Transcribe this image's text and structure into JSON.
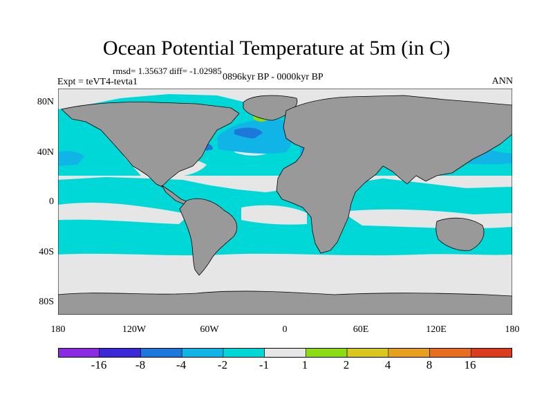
{
  "title": "Ocean Potential Temperature at 5m (in C)",
  "stats": "rmsd= 1.35637 diff= -1.02985",
  "experiment": "Expt = teVT4-tevta1",
  "period": "0896kyr BP - 0000kyr BP",
  "season": "ANN",
  "colors": {
    "land": "#999999",
    "ocean_default": "#00d8d8",
    "near_zero": "#e6e6e6",
    "sea_ice": "#dcdcdc"
  },
  "axes": {
    "lat_labels": [
      "80N",
      "40N",
      "0",
      "40S",
      "80S"
    ],
    "lon_labels": [
      "180",
      "120W",
      "60W",
      "0",
      "60E",
      "120E",
      "180"
    ]
  },
  "colorbar": {
    "colors": [
      "#8a2be2",
      "#3c28d8",
      "#1e78dc",
      "#10b4e6",
      "#00d8d8",
      "#e6e6e6",
      "#8cdc14",
      "#d8c81e",
      "#e6a01e",
      "#e66e1e",
      "#dc3c1e"
    ],
    "labels": [
      "-16",
      "-8",
      "-4",
      "-2",
      "-1",
      "1",
      "2",
      "4",
      "8",
      "16"
    ]
  }
}
